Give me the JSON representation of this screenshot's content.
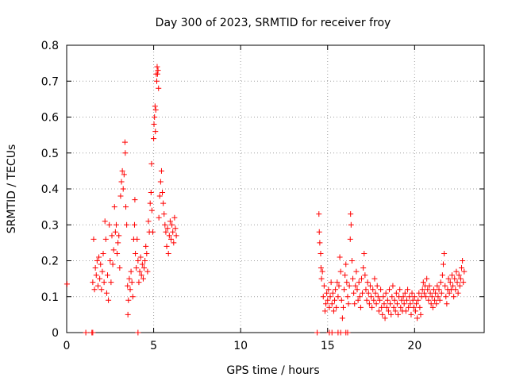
{
  "chart_data": {
    "type": "scatter",
    "title": "Day 300 of 2023, SRMTID for receiver froy",
    "xlabel": "GPS time / hours",
    "ylabel": "SRMTID / TECUs",
    "xlim": [
      0,
      24
    ],
    "ylim": [
      0,
      0.8
    ],
    "grid": true,
    "marker": "+",
    "x_ticks": [
      0,
      5,
      10,
      15,
      20
    ],
    "x_tick_labels": [
      "0",
      "5",
      "10",
      "15",
      "20"
    ],
    "y_ticks": [
      0,
      0.1,
      0.2,
      0.3,
      0.4,
      0.5,
      0.6,
      0.7,
      0.8
    ],
    "y_tick_labels": [
      "0",
      "0.1",
      "0.2",
      "0.3",
      "0.4",
      "0.5",
      "0.6",
      "0.7",
      "0.8"
    ],
    "colors": {
      "series": "#ff0000",
      "grid": "#a0a0a0",
      "axis": "#000000"
    },
    "series": [
      {
        "name": "SRMTID",
        "points": [
          [
            0.02,
            0.135
          ],
          [
            1.1,
            0
          ],
          [
            1.45,
            0
          ],
          [
            1.5,
            0
          ],
          [
            4.1,
            0
          ],
          [
            14.4,
            0
          ],
          [
            15.1,
            0
          ],
          [
            15.25,
            0
          ],
          [
            15.6,
            0
          ],
          [
            15.75,
            0
          ],
          [
            16.05,
            0
          ],
          [
            16.15,
            0
          ],
          [
            1.5,
            0.14
          ],
          [
            1.55,
            0.26
          ],
          [
            1.6,
            0.12
          ],
          [
            1.65,
            0.18
          ],
          [
            1.7,
            0.16
          ],
          [
            1.75,
            0.2
          ],
          [
            1.8,
            0.13
          ],
          [
            1.85,
            0.21
          ],
          [
            1.9,
            0.15
          ],
          [
            1.95,
            0.19
          ],
          [
            2.0,
            0.12
          ],
          [
            2.05,
            0.17
          ],
          [
            2.1,
            0.22
          ],
          [
            2.15,
            0.14
          ],
          [
            2.2,
            0.31
          ],
          [
            2.25,
            0.26
          ],
          [
            2.3,
            0.11
          ],
          [
            2.35,
            0.16
          ],
          [
            2.4,
            0.09
          ],
          [
            2.45,
            0.3
          ],
          [
            2.5,
            0.2
          ],
          [
            2.55,
            0.14
          ],
          [
            2.6,
            0.27
          ],
          [
            2.65,
            0.19
          ],
          [
            2.7,
            0.23
          ],
          [
            2.75,
            0.35
          ],
          [
            2.8,
            0.28
          ],
          [
            2.85,
            0.3
          ],
          [
            2.9,
            0.22
          ],
          [
            2.95,
            0.25
          ],
          [
            3.0,
            0.27
          ],
          [
            3.05,
            0.18
          ],
          [
            3.1,
            0.38
          ],
          [
            3.15,
            0.42
          ],
          [
            3.2,
            0.45
          ],
          [
            3.25,
            0.4
          ],
          [
            3.3,
            0.44
          ],
          [
            3.35,
            0.53
          ],
          [
            3.37,
            0.5
          ],
          [
            3.4,
            0.35
          ],
          [
            3.45,
            0.3
          ],
          [
            3.5,
            0.13
          ],
          [
            3.52,
            0.05
          ],
          [
            3.55,
            0.09
          ],
          [
            3.6,
            0.15
          ],
          [
            3.65,
            0.12
          ],
          [
            3.7,
            0.17
          ],
          [
            3.75,
            0.14
          ],
          [
            3.8,
            0.1
          ],
          [
            3.85,
            0.26
          ],
          [
            3.9,
            0.3
          ],
          [
            3.92,
            0.37
          ],
          [
            3.95,
            0.22
          ],
          [
            4.0,
            0.18
          ],
          [
            4.05,
            0.26
          ],
          [
            4.1,
            0.2
          ],
          [
            4.15,
            0.14
          ],
          [
            4.2,
            0.17
          ],
          [
            4.25,
            0.21
          ],
          [
            4.3,
            0.16
          ],
          [
            4.35,
            0.19
          ],
          [
            4.4,
            0.15
          ],
          [
            4.45,
            0.18
          ],
          [
            4.5,
            0.2
          ],
          [
            4.55,
            0.24
          ],
          [
            4.6,
            0.22
          ],
          [
            4.65,
            0.17
          ],
          [
            4.7,
            0.31
          ],
          [
            4.75,
            0.28
          ],
          [
            4.8,
            0.36
          ],
          [
            4.85,
            0.39
          ],
          [
            4.88,
            0.47
          ],
          [
            4.9,
            0.34
          ],
          [
            4.95,
            0.28
          ],
          [
            5.0,
            0.54
          ],
          [
            5.02,
            0.58
          ],
          [
            5.05,
            0.6
          ],
          [
            5.08,
            0.63
          ],
          [
            5.1,
            0.56
          ],
          [
            5.12,
            0.62
          ],
          [
            5.15,
            0.72
          ],
          [
            5.18,
            0.7
          ],
          [
            5.2,
            0.74
          ],
          [
            5.22,
            0.72
          ],
          [
            5.25,
            0.73
          ],
          [
            5.28,
            0.68
          ],
          [
            5.3,
            0.32
          ],
          [
            5.35,
            0.38
          ],
          [
            5.4,
            0.42
          ],
          [
            5.45,
            0.45
          ],
          [
            5.5,
            0.39
          ],
          [
            5.55,
            0.36
          ],
          [
            5.6,
            0.33
          ],
          [
            5.65,
            0.3
          ],
          [
            5.7,
            0.28
          ],
          [
            5.75,
            0.24
          ],
          [
            5.8,
            0.29
          ],
          [
            5.85,
            0.22
          ],
          [
            5.9,
            0.27
          ],
          [
            5.95,
            0.31
          ],
          [
            6.0,
            0.26
          ],
          [
            6.05,
            0.3
          ],
          [
            6.1,
            0.28
          ],
          [
            6.15,
            0.25
          ],
          [
            6.2,
            0.32
          ],
          [
            6.25,
            0.29
          ],
          [
            6.3,
            0.27
          ],
          [
            14.5,
            0.33
          ],
          [
            14.52,
            0.28
          ],
          [
            14.55,
            0.25
          ],
          [
            14.6,
            0.22
          ],
          [
            14.62,
            0.18
          ],
          [
            14.65,
            0.15
          ],
          [
            14.7,
            0.17
          ],
          [
            14.75,
            0.1
          ],
          [
            14.8,
            0.13
          ],
          [
            14.85,
            0.06
          ],
          [
            14.9,
            0.08
          ],
          [
            14.95,
            0.11
          ],
          [
            15.0,
            0.09
          ],
          [
            15.05,
            0.12
          ],
          [
            15.1,
            0.07
          ],
          [
            15.15,
            0.1
          ],
          [
            15.2,
            0.14
          ],
          [
            15.25,
            0.08
          ],
          [
            15.3,
            0.11
          ],
          [
            15.35,
            0.06
          ],
          [
            15.4,
            0.09
          ],
          [
            15.45,
            0.12
          ],
          [
            15.5,
            0.07
          ],
          [
            15.55,
            0.14
          ],
          [
            15.6,
            0.1
          ],
          [
            15.65,
            0.13
          ],
          [
            15.7,
            0.21
          ],
          [
            15.75,
            0.17
          ],
          [
            15.8,
            0.09
          ],
          [
            15.85,
            0.04
          ],
          [
            15.9,
            0.07
          ],
          [
            15.95,
            0.12
          ],
          [
            16.0,
            0.16
          ],
          [
            16.05,
            0.19
          ],
          [
            16.1,
            0.14
          ],
          [
            16.15,
            0.1
          ],
          [
            16.2,
            0.08
          ],
          [
            16.25,
            0.13
          ],
          [
            16.3,
            0.26
          ],
          [
            16.32,
            0.33
          ],
          [
            16.35,
            0.3
          ],
          [
            16.4,
            0.2
          ],
          [
            16.45,
            0.15
          ],
          [
            16.5,
            0.11
          ],
          [
            16.55,
            0.08
          ],
          [
            16.6,
            0.13
          ],
          [
            16.65,
            0.17
          ],
          [
            16.7,
            0.12
          ],
          [
            16.75,
            0.09
          ],
          [
            16.8,
            0.14
          ],
          [
            16.85,
            0.1
          ],
          [
            16.9,
            0.07
          ],
          [
            16.95,
            0.15
          ],
          [
            17.0,
            0.11
          ],
          [
            17.05,
            0.18
          ],
          [
            17.1,
            0.22
          ],
          [
            17.15,
            0.16
          ],
          [
            17.2,
            0.12
          ],
          [
            17.25,
            0.09
          ],
          [
            17.3,
            0.14
          ],
          [
            17.35,
            0.11
          ],
          [
            17.4,
            0.08
          ],
          [
            17.45,
            0.13
          ],
          [
            17.5,
            0.1
          ],
          [
            17.55,
            0.07
          ],
          [
            17.6,
            0.12
          ],
          [
            17.65,
            0.09
          ],
          [
            17.7,
            0.15
          ],
          [
            17.75,
            0.11
          ],
          [
            17.8,
            0.08
          ],
          [
            17.85,
            0.13
          ],
          [
            17.9,
            0.1
          ],
          [
            17.95,
            0.06
          ],
          [
            18.0,
            0.09
          ],
          [
            18.05,
            0.12
          ],
          [
            18.1,
            0.07
          ],
          [
            18.15,
            0.05
          ],
          [
            18.2,
            0.1
          ],
          [
            18.25,
            0.08
          ],
          [
            18.3,
            0.04
          ],
          [
            18.35,
            0.11
          ],
          [
            18.4,
            0.07
          ],
          [
            18.45,
            0.09
          ],
          [
            18.5,
            0.06
          ],
          [
            18.55,
            0.12
          ],
          [
            18.6,
            0.08
          ],
          [
            18.65,
            0.05
          ],
          [
            18.7,
            0.1
          ],
          [
            18.75,
            0.13
          ],
          [
            18.8,
            0.07
          ],
          [
            18.85,
            0.09
          ],
          [
            18.9,
            0.06
          ],
          [
            18.95,
            0.11
          ],
          [
            19.0,
            0.08
          ],
          [
            19.05,
            0.05
          ],
          [
            19.1,
            0.1
          ],
          [
            19.15,
            0.12
          ],
          [
            19.2,
            0.07
          ],
          [
            19.25,
            0.09
          ],
          [
            19.3,
            0.06
          ],
          [
            19.35,
            0.1
          ],
          [
            19.4,
            0.08
          ],
          [
            19.45,
            0.11
          ],
          [
            19.5,
            0.06
          ],
          [
            19.55,
            0.09
          ],
          [
            19.6,
            0.12
          ],
          [
            19.65,
            0.07
          ],
          [
            19.7,
            0.1
          ],
          [
            19.75,
            0.08
          ],
          [
            19.8,
            0.05
          ],
          [
            19.85,
            0.11
          ],
          [
            19.9,
            0.09
          ],
          [
            19.95,
            0.07
          ],
          [
            20.0,
            0.1
          ],
          [
            20.05,
            0.06
          ],
          [
            20.1,
            0.08
          ],
          [
            20.15,
            0.04
          ],
          [
            20.2,
            0.09
          ],
          [
            20.25,
            0.11
          ],
          [
            20.3,
            0.07
          ],
          [
            20.35,
            0.05
          ],
          [
            20.4,
            0.1
          ],
          [
            20.45,
            0.12
          ],
          [
            20.5,
            0.14
          ],
          [
            20.55,
            0.11
          ],
          [
            20.6,
            0.13
          ],
          [
            20.65,
            0.1
          ],
          [
            20.7,
            0.15
          ],
          [
            20.75,
            0.12
          ],
          [
            20.8,
            0.09
          ],
          [
            20.85,
            0.13
          ],
          [
            20.9,
            0.11
          ],
          [
            20.95,
            0.08
          ],
          [
            21.0,
            0.1
          ],
          [
            21.05,
            0.07
          ],
          [
            21.1,
            0.12
          ],
          [
            21.15,
            0.09
          ],
          [
            21.2,
            0.11
          ],
          [
            21.25,
            0.08
          ],
          [
            21.3,
            0.13
          ],
          [
            21.35,
            0.1
          ],
          [
            21.4,
            0.12
          ],
          [
            21.45,
            0.09
          ],
          [
            21.5,
            0.14
          ],
          [
            21.55,
            0.11
          ],
          [
            21.6,
            0.16
          ],
          [
            21.65,
            0.19
          ],
          [
            21.7,
            0.22
          ],
          [
            21.75,
            0.13
          ],
          [
            21.8,
            0.1
          ],
          [
            21.85,
            0.08
          ],
          [
            21.9,
            0.12
          ],
          [
            21.95,
            0.15
          ],
          [
            22.0,
            0.11
          ],
          [
            22.05,
            0.14
          ],
          [
            22.1,
            0.12
          ],
          [
            22.15,
            0.16
          ],
          [
            22.2,
            0.13
          ],
          [
            22.25,
            0.1
          ],
          [
            22.3,
            0.15
          ],
          [
            22.35,
            0.12
          ],
          [
            22.4,
            0.17
          ],
          [
            22.45,
            0.14
          ],
          [
            22.5,
            0.11
          ],
          [
            22.55,
            0.16
          ],
          [
            22.6,
            0.13
          ],
          [
            22.65,
            0.15
          ],
          [
            22.7,
            0.18
          ],
          [
            22.75,
            0.2
          ],
          [
            22.8,
            0.14
          ],
          [
            22.85,
            0.17
          ]
        ]
      }
    ]
  }
}
